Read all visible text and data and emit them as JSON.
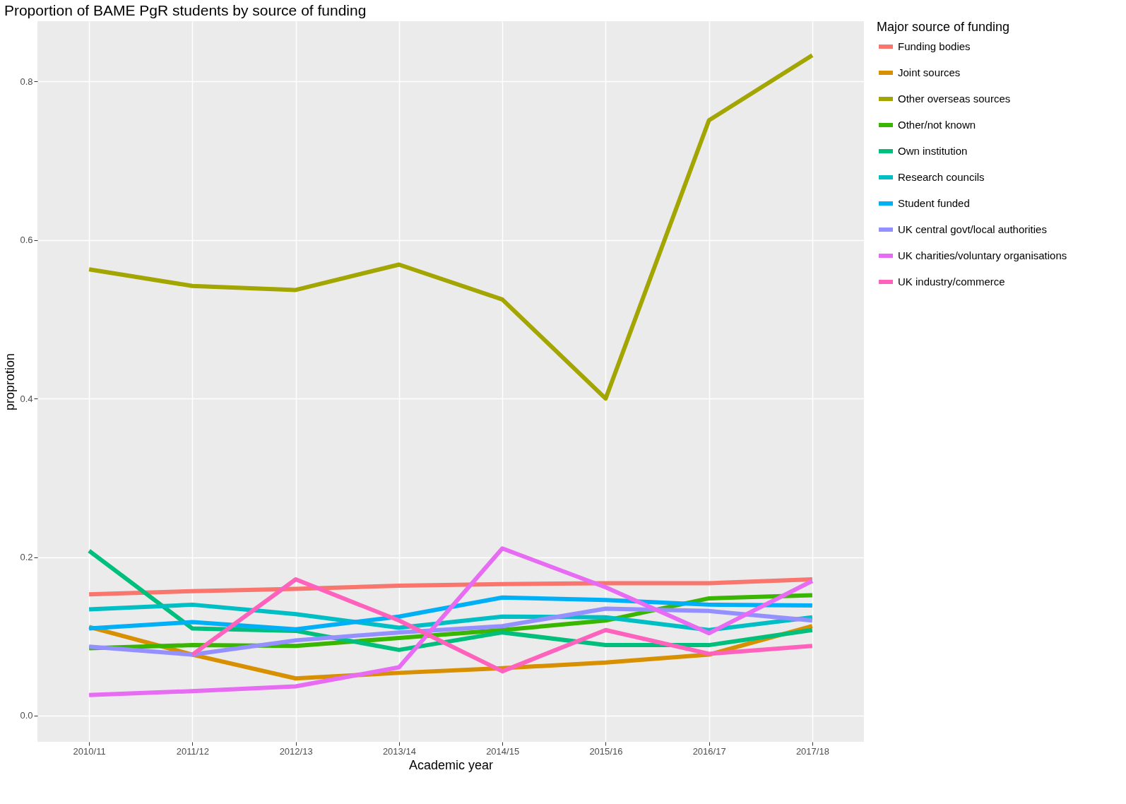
{
  "chart_data": {
    "type": "line",
    "title": "Proportion of BAME PgR students by source of funding",
    "xlabel": "Academic year",
    "ylabel": "proprotion",
    "legend_title": "Major source of funding",
    "categories": [
      "2010/11",
      "2011/12",
      "2012/13",
      "2013/14",
      "2014/15",
      "2015/16",
      "2016/17",
      "2017/18"
    ],
    "series": [
      {
        "name": "Funding bodies",
        "color": "#f8766d",
        "values": [
          0.153,
          0.157,
          0.16,
          0.164,
          0.166,
          0.167,
          0.167,
          0.172
        ]
      },
      {
        "name": "Joint sources",
        "color": "#d89000",
        "values": [
          0.112,
          0.077,
          0.047,
          0.054,
          0.06,
          0.067,
          0.077,
          0.113
        ]
      },
      {
        "name": "Other overseas sources",
        "color": "#a3a500",
        "values": [
          0.563,
          0.542,
          0.537,
          0.569,
          0.525,
          0.4,
          0.751,
          0.833
        ]
      },
      {
        "name": "Other/not known",
        "color": "#39b600",
        "values": [
          0.085,
          0.089,
          0.088,
          0.098,
          0.108,
          0.12,
          0.148,
          0.152
        ]
      },
      {
        "name": "Own institution",
        "color": "#00bf7d",
        "values": [
          0.208,
          0.11,
          0.107,
          0.083,
          0.105,
          0.089,
          0.089,
          0.108
        ]
      },
      {
        "name": "Research councils",
        "color": "#00bfc4",
        "values": [
          0.134,
          0.14,
          0.128,
          0.111,
          0.125,
          0.124,
          0.108,
          0.124
        ]
      },
      {
        "name": "Student funded",
        "color": "#00b0f6",
        "values": [
          0.11,
          0.118,
          0.109,
          0.125,
          0.149,
          0.146,
          0.14,
          0.139
        ]
      },
      {
        "name": "UK central govt/local authorities",
        "color": "#9590ff",
        "values": [
          0.087,
          0.077,
          0.095,
          0.105,
          0.113,
          0.135,
          0.132,
          0.12
        ]
      },
      {
        "name": "UK charities/voluntary organisations",
        "color": "#e76bf3",
        "values": [
          0.026,
          0.031,
          0.037,
          0.061,
          0.211,
          0.162,
          0.104,
          0.17
        ]
      },
      {
        "name": "UK industry/commerce",
        "color": "#ff62bc",
        "values": [
          null,
          0.077,
          0.172,
          0.12,
          0.056,
          0.108,
          0.078,
          0.088
        ]
      }
    ],
    "ylim": [
      -0.033,
      0.876
    ],
    "yticks": [
      {
        "value": 0,
        "label": "0.0"
      },
      0.2,
      0.4,
      0.6,
      0.8
    ],
    "grid": true,
    "legend": "right",
    "line_style": "solid",
    "marker": "none"
  }
}
